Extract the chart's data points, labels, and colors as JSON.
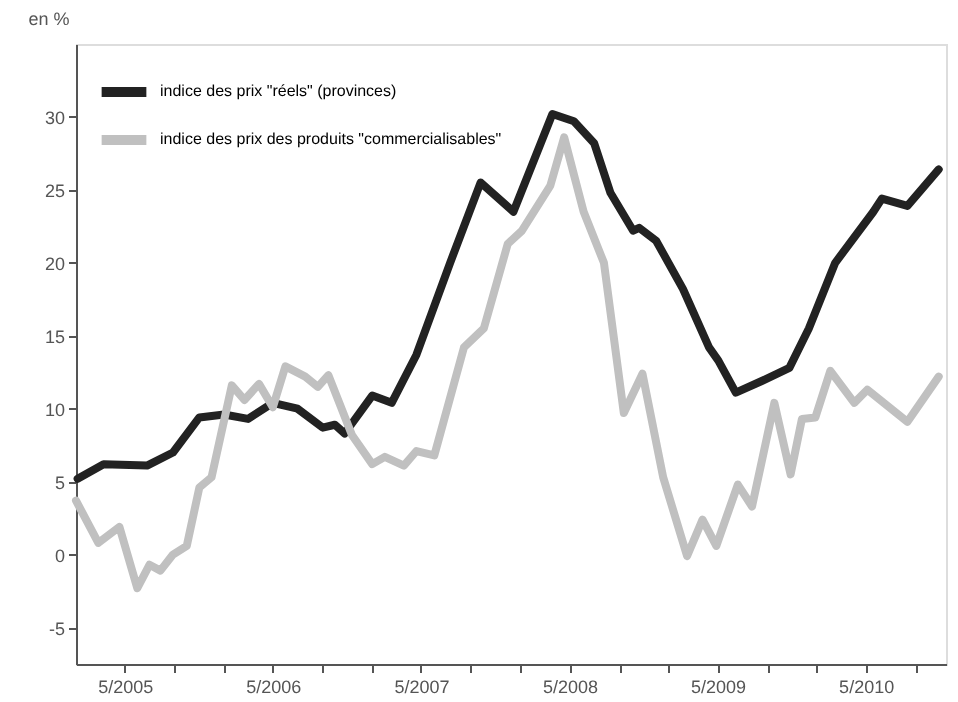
{
  "chart_data": {
    "type": "line",
    "ylabel": "en %",
    "legend": "top left",
    "grid": false,
    "line_style": "solid",
    "marker": "none",
    "xlim": [
      "2005-01-01",
      "2010-11-15"
    ],
    "ylim": [
      -7.5,
      35
    ],
    "yticks": [
      -5,
      0,
      5,
      10,
      15,
      20,
      25,
      30
    ],
    "xticks": [
      {
        "value": "2005-05-01",
        "label": "5/2005"
      },
      {
        "value": "2005-09-01",
        "label": null
      },
      {
        "value": "2006-01-01",
        "label": null
      },
      {
        "value": "2006-05-01",
        "label": "5/2006"
      },
      {
        "value": "2006-09-01",
        "label": null
      },
      {
        "value": "2007-01-01",
        "label": null
      },
      {
        "value": "2007-05-01",
        "label": "5/2007"
      },
      {
        "value": "2007-09-01",
        "label": null
      },
      {
        "value": "2008-01-01",
        "label": null
      },
      {
        "value": "2008-05-01",
        "label": "5/2008"
      },
      {
        "value": "2008-09-01",
        "label": null
      },
      {
        "value": "2009-01-01",
        "label": null
      },
      {
        "value": "2009-05-01",
        "label": "5/2009"
      },
      {
        "value": "2009-09-01",
        "label": null
      },
      {
        "value": "2010-01-01",
        "label": null
      },
      {
        "value": "2010-05-01",
        "label": "5/2010"
      },
      {
        "value": "2010-09-01",
        "label": null
      }
    ],
    "series": [
      {
        "name": "indice des prix \"réels\" (provinces)",
        "color": "#222222",
        "x": [
          "2005-01-05",
          "2005-03-10",
          "2005-06-25",
          "2005-08-28",
          "2005-11-01",
          "2006-01-01",
          "2006-03-01",
          "2006-05-01",
          "2006-07-01",
          "2006-09-01",
          "2006-10-01",
          "2006-10-25",
          "2007-01-01",
          "2007-02-18",
          "2007-04-20",
          "2007-07-12",
          "2007-09-25",
          "2007-12-15",
          "2008-03-20",
          "2008-05-12",
          "2008-07-01",
          "2008-08-10",
          "2008-10-05",
          "2008-10-20",
          "2008-12-01",
          "2009-02-05",
          "2009-04-10",
          "2009-05-03",
          "2009-06-15",
          "2009-08-18",
          "2009-10-25",
          "2009-12-12",
          "2010-02-15",
          "2010-05-20",
          "2010-06-10",
          "2010-08-12",
          "2010-10-28"
        ],
        "values": [
          5.2,
          6.2,
          6.1,
          7.0,
          9.4,
          9.6,
          9.3,
          10.4,
          10.0,
          8.7,
          8.9,
          8.3,
          10.9,
          10.4,
          13.7,
          20.0,
          25.5,
          23.5,
          30.2,
          29.7,
          28.2,
          24.8,
          22.2,
          22.4,
          21.5,
          18.2,
          14.2,
          13.3,
          11.1,
          11.9,
          12.8,
          15.5,
          20.0,
          23.5,
          24.4,
          23.9,
          26.4
        ]
      },
      {
        "name": "indice des prix des produits \"commercialisables\"",
        "color": "#c0c0c0",
        "x": [
          "2005-01-01",
          "2005-02-25",
          "2005-04-18",
          "2005-06-01",
          "2005-07-01",
          "2005-07-28",
          "2005-08-28",
          "2005-10-01",
          "2005-11-01",
          "2005-12-01",
          "2006-01-20",
          "2006-02-20",
          "2006-03-28",
          "2006-05-01",
          "2006-06-01",
          "2006-07-20",
          "2006-08-20",
          "2006-09-15",
          "2006-11-12",
          "2007-01-01",
          "2007-02-01",
          "2007-03-20",
          "2007-04-20",
          "2007-06-03",
          "2007-08-15",
          "2007-10-03",
          "2007-12-01",
          "2008-01-05",
          "2008-03-15",
          "2008-04-18",
          "2008-06-05",
          "2008-07-25",
          "2008-09-12",
          "2008-10-28",
          "2008-12-18",
          "2009-02-15",
          "2009-03-25",
          "2009-04-28",
          "2009-06-20",
          "2009-07-25",
          "2009-09-18",
          "2009-10-28",
          "2009-11-25",
          "2009-12-28",
          "2010-02-03",
          "2010-04-03",
          "2010-05-05",
          "2010-08-12",
          "2010-10-28"
        ],
        "values": [
          3.7,
          0.8,
          1.9,
          -2.3,
          -0.7,
          -1.1,
          0.0,
          0.6,
          4.6,
          5.3,
          11.6,
          10.6,
          11.7,
          10.1,
          12.9,
          12.2,
          11.5,
          12.3,
          8.2,
          6.2,
          6.7,
          6.1,
          7.1,
          6.8,
          14.2,
          15.5,
          21.3,
          22.2,
          25.3,
          28.6,
          23.5,
          20.0,
          9.7,
          12.4,
          5.3,
          -0.1,
          2.4,
          0.6,
          4.8,
          3.3,
          10.4,
          5.5,
          9.3,
          9.4,
          12.6,
          10.4,
          11.3,
          9.1,
          12.2
        ]
      }
    ]
  }
}
